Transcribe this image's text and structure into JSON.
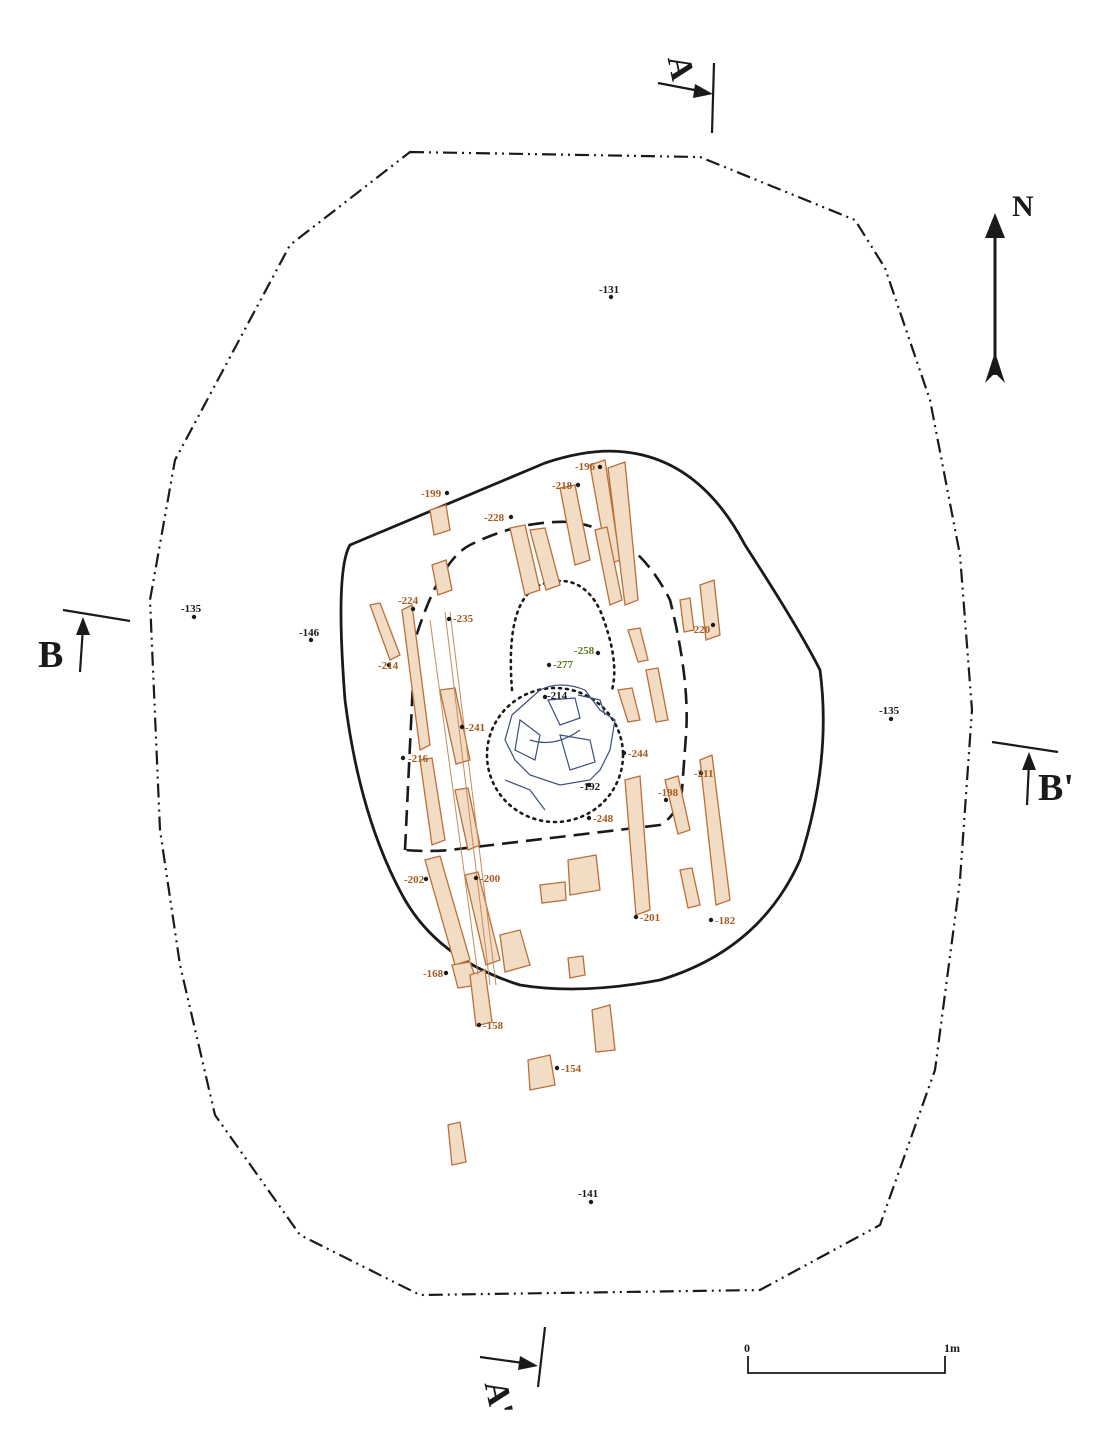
{
  "labels": {
    "north": "N",
    "section_a": "A",
    "section_a_prime": "A'",
    "section_b": "B",
    "section_b_prime": "B'",
    "scale_start": "0",
    "scale_end": "1m"
  },
  "elevations": {
    "e131": "-131",
    "e135w": "-135",
    "e146": "-146",
    "e135e": "-135",
    "e141": "-141",
    "e196": "-196",
    "e199": "-199",
    "e218": "-218",
    "e228": "-228",
    "e224": "-224",
    "e235": "-235",
    "e214w": "-214",
    "e220": "-220",
    "e258": "-258",
    "e277": "-277",
    "e214c": "-214",
    "e241": "-241",
    "e244": "-244",
    "e216": "-216",
    "e192": "-192",
    "e248": "-248",
    "e211": "-211",
    "e198": "-198",
    "e202": "-202",
    "e200": "-200",
    "e201": "-201",
    "e182": "-182",
    "e168": "-168",
    "e158": "-158",
    "e154": "-154"
  },
  "colors": {
    "ink": "#1a1a1a",
    "timber": "#b8703a",
    "timber_fill": "#f3dcc4",
    "remains": "#3a4f7a"
  }
}
